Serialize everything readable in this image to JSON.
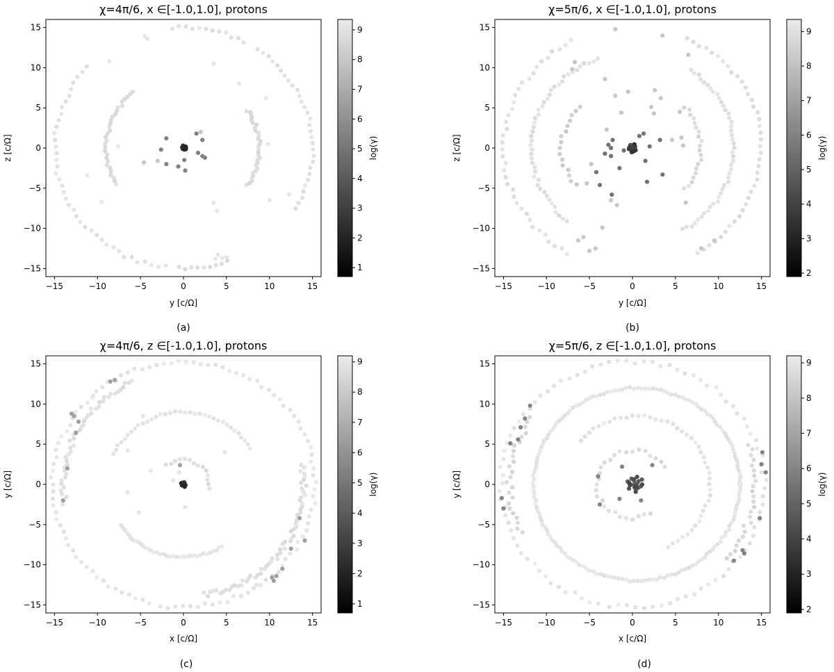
{
  "chart_data": [
    {
      "type": "scatter",
      "panel": "(a)",
      "title": "χ=4π/6, x ∈[-1.0,1.0], protons",
      "xlabel": "y [c/Ω]",
      "ylabel": "z [c/Ω]",
      "xlim": [
        -16,
        16
      ],
      "ylim": [
        -16,
        16
      ],
      "xticks": [
        -15,
        -10,
        -5,
        0,
        5,
        10,
        15
      ],
      "yticks": [
        -15,
        -10,
        -5,
        0,
        5,
        10,
        15
      ],
      "colorbar": {
        "label": "log(γ)",
        "min": 0.7,
        "max": 9.35,
        "ticks": [
          1,
          2,
          3,
          4,
          5,
          6,
          7,
          8,
          9
        ]
      },
      "grid": false,
      "point_groups": [
        {
          "kind": "arc",
          "cx": 0,
          "cy": 0,
          "r": 15.0,
          "from": -30,
          "to": 55,
          "n": 30,
          "value": 9.2,
          "jitter": 0.2
        },
        {
          "kind": "arc",
          "cx": 0,
          "cy": 0,
          "r": 15.0,
          "from": 62,
          "to": 95,
          "n": 12,
          "value": 9.2,
          "jitter": 0.2
        },
        {
          "kind": "arc",
          "cx": 0,
          "cy": 0,
          "r": 15.0,
          "from": 138,
          "to": 262,
          "n": 40,
          "value": 9.2,
          "jitter": 0.25
        },
        {
          "kind": "arc",
          "cx": 0,
          "cy": 0,
          "r": 15.0,
          "from": 268,
          "to": 290,
          "n": 9,
          "value": 9.0,
          "jitter": 0.2
        },
        {
          "kind": "arc",
          "cx": 0,
          "cy": 0,
          "r": 9.0,
          "from": 130,
          "to": 210,
          "n": 30,
          "value": 9.0,
          "jitter": 0.2
        },
        {
          "kind": "arc",
          "cx": 0,
          "cy": 0,
          "r": 8.8,
          "from": -32,
          "to": 32,
          "n": 30,
          "value": 9.0,
          "jitter": 0.2
        },
        {
          "kind": "cluster",
          "cx": 0,
          "cy": 0,
          "spread": 0.3,
          "n": 14,
          "value": 2.0
        },
        {
          "kind": "points",
          "value": 9.2,
          "xy": [
            [
              -8.6,
              10.8
            ],
            [
              -4.2,
              13.6
            ],
            [
              -4.5,
              13.9
            ],
            [
              3.5,
              10.5
            ],
            [
              6.5,
              8.0
            ],
            [
              9.6,
              6.2
            ],
            [
              9.8,
              0.5
            ],
            [
              12.3,
              -5.8
            ],
            [
              -9.5,
              -6.7
            ],
            [
              -11.2,
              -3.4
            ],
            [
              -7.6,
              0.2
            ],
            [
              3.5,
              -6.8
            ],
            [
              3.9,
              -7.8
            ],
            [
              10.0,
              -6.5
            ],
            [
              3.7,
              -13.8
            ],
            [
              4.5,
              -13.7
            ],
            [
              5.0,
              -13.6
            ],
            [
              4.0,
              -13.3
            ]
          ]
        },
        {
          "kind": "points",
          "value": 5.5,
          "xy": [
            [
              -2.0,
              1.2
            ],
            [
              -2.6,
              -0.2
            ],
            [
              -2.0,
              -2.0
            ],
            [
              -0.6,
              -2.3
            ],
            [
              0.2,
              -2.8
            ],
            [
              1.5,
              1.8
            ],
            [
              2.5,
              -1.2
            ],
            [
              2.2,
              -1.0
            ],
            [
              1.7,
              -0.6
            ],
            [
              0.1,
              -1.5
            ],
            [
              2.2,
              1.0
            ]
          ]
        },
        {
          "kind": "points",
          "value": 8.0,
          "xy": [
            [
              -3.0,
              -1.6
            ],
            [
              -4.6,
              -1.8
            ],
            [
              2.0,
              2.0
            ]
          ]
        }
      ]
    },
    {
      "type": "scatter",
      "panel": "(b)",
      "title": "χ=5π/6, x ∈[-1.0,1.0], protons",
      "xlabel": "y [c/Ω]",
      "ylabel": "z [c/Ω]",
      "xlim": [
        -16,
        16
      ],
      "ylim": [
        -16,
        16
      ],
      "xticks": [
        -15,
        -10,
        -5,
        0,
        5,
        10,
        15
      ],
      "yticks": [
        -15,
        -10,
        -5,
        0,
        5,
        10,
        15
      ],
      "colorbar": {
        "label": "log(γ)",
        "min": 1.9,
        "max": 9.35,
        "ticks": [
          2,
          3,
          4,
          5,
          6,
          7,
          8,
          9
        ]
      },
      "grid": false,
      "point_groups": [
        {
          "kind": "arc",
          "cx": 0,
          "cy": 0,
          "r": 15.0,
          "from": -60,
          "to": 65,
          "n": 40,
          "value": 9.2,
          "jitter": 0.25
        },
        {
          "kind": "arc",
          "cx": 0,
          "cy": 0,
          "r": 15.0,
          "from": 118,
          "to": 240,
          "n": 38,
          "value": 9.2,
          "jitter": 0.25
        },
        {
          "kind": "arc",
          "cx": 0,
          "cy": 0,
          "r": 11.8,
          "from": 110,
          "to": 230,
          "n": 45,
          "value": 9.2,
          "jitter": 0.2
        },
        {
          "kind": "arc",
          "cx": 0,
          "cy": 0,
          "r": 11.8,
          "from": -60,
          "to": 55,
          "n": 45,
          "value": 9.2,
          "jitter": 0.2
        },
        {
          "kind": "arc",
          "cx": 0,
          "cy": 0,
          "r": 8.0,
          "from": -40,
          "to": 40,
          "n": 20,
          "value": 9.0,
          "jitter": 0.2
        },
        {
          "kind": "arc",
          "cx": 0,
          "cy": 0,
          "r": 8.2,
          "from": 140,
          "to": 215,
          "n": 16,
          "value": 8.6,
          "jitter": 0.3
        },
        {
          "kind": "cluster",
          "cx": 0,
          "cy": 0,
          "spread": 0.45,
          "n": 20,
          "value": 3.5
        },
        {
          "kind": "points",
          "value": 5.5,
          "xy": [
            [
              -2.3,
              1.0
            ],
            [
              -2.8,
              0.4
            ],
            [
              -2.5,
              -1.0
            ],
            [
              -1.5,
              -2.5
            ],
            [
              -1.0,
              -0.3
            ],
            [
              0.8,
              1.5
            ],
            [
              1.5,
              -1.6
            ],
            [
              1.3,
              1.8
            ],
            [
              -3.2,
              -0.7
            ],
            [
              -2.5,
              0.0
            ],
            [
              2.0,
              0.2
            ],
            [
              3.2,
              1.0
            ],
            [
              3.5,
              -3.3
            ],
            [
              -4.2,
              -3.0
            ],
            [
              -3.8,
              -4.6
            ],
            [
              1.7,
              -4.2
            ],
            [
              -2.4,
              -5.8
            ]
          ]
        },
        {
          "kind": "points",
          "value": 8.2,
          "xy": [
            [
              -2.0,
              14.8
            ],
            [
              3.5,
              14.0
            ],
            [
              6.5,
              11.6
            ],
            [
              -7.0,
              9.8
            ],
            [
              -6.7,
              10.7
            ],
            [
              -3.2,
              8.6
            ],
            [
              -0.5,
              7.0
            ],
            [
              -2.0,
              6.5
            ],
            [
              3.3,
              6.2
            ],
            [
              2.6,
              7.2
            ],
            [
              2.2,
              5.1
            ],
            [
              2.5,
              4.3
            ],
            [
              -1.3,
              4.4
            ],
            [
              -3.0,
              2.3
            ],
            [
              -4.8,
              -2.0
            ],
            [
              -5.3,
              -4.4
            ],
            [
              -2.5,
              -6.5
            ],
            [
              -1.8,
              -7.1
            ],
            [
              -3.5,
              -9.9
            ],
            [
              4.6,
              1.0
            ],
            [
              5.5,
              4.5
            ],
            [
              5.7,
              1.3
            ],
            [
              5.9,
              0.3
            ],
            [
              6.2,
              -6.8
            ],
            [
              8.0,
              -12.5
            ],
            [
              9.5,
              -11.5
            ],
            [
              -5.7,
              -11.1
            ],
            [
              -6.3,
              -11.5
            ],
            [
              -5.0,
              -12.8
            ],
            [
              -4.3,
              -12.5
            ]
          ]
        }
      ]
    },
    {
      "type": "scatter",
      "panel": "(c)",
      "title": "χ=4π/6, z ∈[-1.0,1.0], protons",
      "xlabel": "x [c/Ω]",
      "ylabel": "y [c/Ω]",
      "xlim": [
        -16,
        16
      ],
      "ylim": [
        -16,
        16
      ],
      "xticks": [
        -15,
        -10,
        -5,
        0,
        5,
        10,
        15
      ],
      "yticks": [
        -15,
        -10,
        -5,
        0,
        5,
        10,
        15
      ],
      "colorbar": {
        "label": "log(γ)",
        "min": 0.7,
        "max": 9.2,
        "ticks": [
          1,
          2,
          3,
          4,
          5,
          6,
          7,
          8,
          9
        ]
      },
      "grid": false,
      "point_groups": [
        {
          "kind": "arc",
          "cx": 0,
          "cy": 0,
          "r": 15.3,
          "from": -100,
          "to": 255,
          "n": 110,
          "value": 9.2,
          "jitter": 0.25
        },
        {
          "kind": "arc",
          "cx": 0,
          "cy": 0,
          "r": 14.0,
          "from": -80,
          "to": 10,
          "n": 60,
          "value": 9.0,
          "jitter": 0.35
        },
        {
          "kind": "arc",
          "cx": 0,
          "cy": 0,
          "r": 14.0,
          "from": 115,
          "to": 190,
          "n": 45,
          "value": 9.0,
          "jitter": 0.35
        },
        {
          "kind": "arc",
          "cx": 0,
          "cy": 0,
          "r": 9.0,
          "from": 30,
          "to": 155,
          "n": 35,
          "value": 9.2,
          "jitter": 0.15
        },
        {
          "kind": "arc",
          "cx": 0,
          "cy": 0,
          "r": 9.0,
          "from": 215,
          "to": 300,
          "n": 35,
          "value": 9.2,
          "jitter": 0.15
        },
        {
          "kind": "arc",
          "cx": 0,
          "cy": 0,
          "r": 3.0,
          "from": -10,
          "to": 130,
          "n": 14,
          "value": 9.0,
          "jitter": 0.2
        },
        {
          "kind": "cluster",
          "cx": 0,
          "cy": 0,
          "spread": 0.3,
          "n": 16,
          "value": 2.0
        },
        {
          "kind": "points",
          "value": 6.5,
          "xy": [
            [
              -8.5,
              12.8
            ],
            [
              -8.0,
              13.0
            ],
            [
              -12.7,
              8.5
            ],
            [
              -12.2,
              7.8
            ],
            [
              -13.0,
              8.8
            ],
            [
              -12.5,
              6.4
            ],
            [
              10.3,
              -11.6
            ],
            [
              10.8,
              -11.4
            ],
            [
              10.5,
              -12.0
            ],
            [
              11.5,
              -10.5
            ],
            [
              12.5,
              -8.0
            ],
            [
              13.5,
              -4.2
            ],
            [
              14.1,
              -7.0
            ],
            [
              -13.5,
              2.0
            ],
            [
              -14.0,
              -2.0
            ],
            [
              -0.4,
              2.4
            ]
          ]
        },
        {
          "kind": "points",
          "value": 9.0,
          "xy": [
            [
              -6.5,
              -1.0
            ],
            [
              -3.8,
              1.7
            ],
            [
              -1.2,
              0.5
            ],
            [
              0.2,
              -2.8
            ],
            [
              -0.5,
              1.5
            ],
            [
              4.8,
              4.0
            ],
            [
              -5.2,
              -3.5
            ],
            [
              -6.5,
              4.2
            ],
            [
              8.5,
              -12.5
            ],
            [
              -4.7,
              8.5
            ],
            [
              -10.5,
              11.0
            ]
          ]
        }
      ]
    },
    {
      "type": "scatter",
      "panel": "(d)",
      "title": "χ=5π/6, z ∈[-1.0,1.0], protons",
      "xlabel": "x [c/Ω]",
      "ylabel": "y [c/Ω]",
      "xlim": [
        -16,
        16
      ],
      "ylim": [
        -16,
        16
      ],
      "xticks": [
        -15,
        -10,
        -5,
        0,
        5,
        10,
        15
      ],
      "yticks": [
        -15,
        -10,
        -5,
        0,
        5,
        10,
        15
      ],
      "colorbar": {
        "label": "log(γ)",
        "min": 1.9,
        "max": 9.2,
        "ticks": [
          2,
          3,
          4,
          5,
          6,
          7,
          8,
          9
        ]
      },
      "grid": false,
      "point_groups": [
        {
          "kind": "arc",
          "cx": 0,
          "cy": 0,
          "r": 15.3,
          "from": -100,
          "to": 255,
          "n": 95,
          "value": 9.2,
          "jitter": 0.3
        },
        {
          "kind": "arc",
          "cx": 0,
          "cy": 0,
          "r": 14.3,
          "from": -40,
          "to": 20,
          "n": 24,
          "value": 8.8,
          "jitter": 0.4
        },
        {
          "kind": "arc",
          "cx": 0,
          "cy": 0,
          "r": 14.3,
          "from": 145,
          "to": 205,
          "n": 24,
          "value": 8.8,
          "jitter": 0.4
        },
        {
          "kind": "arc",
          "cx": 0.5,
          "cy": 0,
          "r": 12.0,
          "from": 0,
          "to": 360,
          "n": 170,
          "value": 9.2,
          "jitter": 0.12
        },
        {
          "kind": "arc",
          "cx": 0.5,
          "cy": 0,
          "r": 8.5,
          "from": -65,
          "to": 140,
          "n": 45,
          "value": 9.2,
          "jitter": 0.15
        },
        {
          "kind": "arc",
          "cx": 0,
          "cy": 0,
          "r": 4.2,
          "from": 30,
          "to": 300,
          "n": 28,
          "value": 9.0,
          "jitter": 0.25
        },
        {
          "kind": "cluster",
          "cx": 0.3,
          "cy": 0.1,
          "spread": 0.9,
          "n": 22,
          "value": 4.0
        },
        {
          "kind": "points",
          "value": 6.0,
          "xy": [
            [
              -11.9,
              9.8
            ],
            [
              -12.5,
              8.2
            ],
            [
              -13.0,
              7.1
            ],
            [
              -13.3,
              5.6
            ],
            [
              -14.2,
              5.1
            ],
            [
              -15.2,
              -1.7
            ],
            [
              -15.0,
              -3.0
            ],
            [
              15.1,
              4.0
            ],
            [
              15.5,
              1.5
            ],
            [
              14.8,
              -4.2
            ],
            [
              15.0,
              2.5
            ],
            [
              12.8,
              -8.2
            ],
            [
              11.8,
              -9.5
            ],
            [
              13.0,
              -8.6
            ],
            [
              -1.5,
              -1.8
            ],
            [
              2.3,
              2.4
            ],
            [
              1.0,
              -2.0
            ],
            [
              -4.0,
              1.0
            ],
            [
              -3.8,
              -2.5
            ],
            [
              -1.2,
              2.2
            ]
          ]
        }
      ]
    }
  ],
  "captions": [
    "(a)",
    "(b)",
    "(c)",
    "(d)"
  ]
}
